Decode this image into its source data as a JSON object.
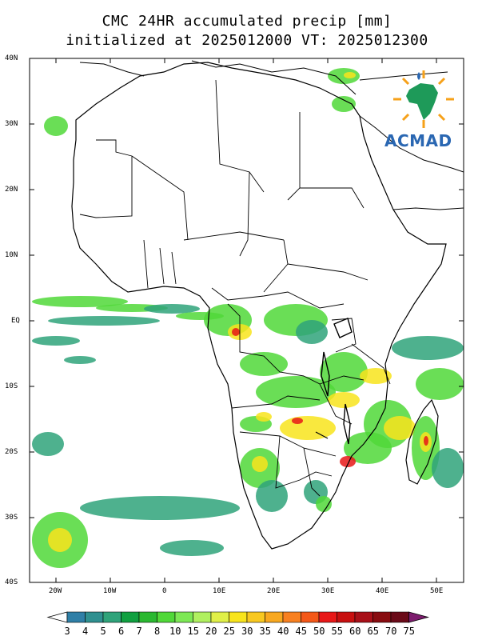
{
  "title_line1": "CMC 24HR accumulated precip [mm]",
  "title_line2": "initialized at 2025012000 VT: 2025012300",
  "logo_text": "ACMAD",
  "lat_labels": [
    "40N",
    "30N",
    "20N",
    "10N",
    "EQ",
    "10S",
    "20S",
    "30S",
    "40S"
  ],
  "lon_labels": [
    "20W",
    "10W",
    "0",
    "10E",
    "20E",
    "30E",
    "40E",
    "50E"
  ],
  "colorbar": {
    "values": [
      "3",
      "4",
      "5",
      "6",
      "7",
      "8",
      "10",
      "15",
      "20",
      "25",
      "30",
      "35",
      "40",
      "45",
      "50",
      "55",
      "60",
      "65",
      "70",
      "75"
    ],
    "colors": [
      "#2f7fa7",
      "#2f9090",
      "#2fa37a",
      "#10a040",
      "#2ab830",
      "#50d838",
      "#7de855",
      "#b0f060",
      "#e0f048",
      "#f8e41c",
      "#f8c820",
      "#f8a820",
      "#f88020",
      "#f45818",
      "#e81818",
      "#c81010",
      "#a81018",
      "#880c10",
      "#6a0a18",
      "#7d1c6e"
    ]
  },
  "map": {
    "lon_range": [
      -25,
      55
    ],
    "lat_range": [
      -40,
      40
    ],
    "colors": {
      "land_outline": "#000000",
      "light": "#50d838",
      "medium": "#f8e41c",
      "heavy": "#e81818",
      "extreme": "#6a0a18",
      "low": "#2fa37a"
    }
  }
}
